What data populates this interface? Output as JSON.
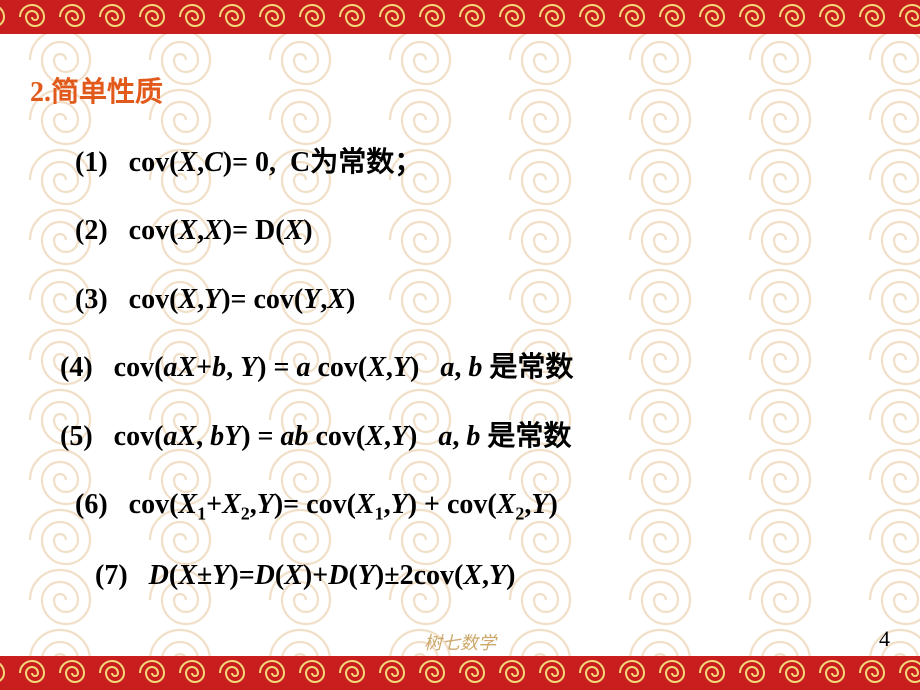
{
  "heading": {
    "num": "2.",
    "text": "简单性质"
  },
  "properties": [
    {
      "html": "(1)&nbsp;&nbsp;&nbsp;cov(<span class='it'>X</span>,<span class='it'>C</span>)= 0,&nbsp;&nbsp;C为常数；",
      "indent": 40
    },
    {
      "html": "(2)&nbsp;&nbsp;&nbsp;cov(<span class='it'>X</span>,<span class='it'>X</span>)= D(<span class='it'>X</span>)",
      "indent": 40
    },
    {
      "html": "(3)&nbsp;&nbsp;&nbsp;cov(<span class='it'>X</span>,<span class='it'>Y</span>)= cov(<span class='it'>Y</span>,<span class='it'>X</span>)",
      "indent": 40
    },
    {
      "html": "(4)&nbsp;&nbsp;&nbsp;cov(<span class='it'>aX</span>+<span class='it'>b</span>, <span class='it'>Y</span>) = <span class='it'>a</span> cov(<span class='it'>X</span>,<span class='it'>Y</span>)&nbsp;&nbsp;&nbsp;<span class='it'>a</span>, <span class='it'>b</span> 是常数",
      "indent": 25
    },
    {
      "html": "(5)&nbsp;&nbsp;&nbsp;cov(<span class='it'>aX</span>, <span class='it'>bY</span>) = <span class='it'>ab</span> cov(<span class='it'>X</span>,<span class='it'>Y</span>)&nbsp;&nbsp;&nbsp;<span class='it'>a</span>, <span class='it'>b</span> 是常数",
      "indent": 25
    },
    {
      "html": "(6)&nbsp;&nbsp;&nbsp;cov(<span class='it'>X</span><span class='sub'>1</span>+<span class='it'>X</span><span class='sub'>2</span>,<span class='it'>Y</span>)= cov(<span class='it'>X</span><span class='sub'>1</span>,<span class='it'>Y</span>) + cov(<span class='it'>X</span><span class='sub'>2</span>,<span class='it'>Y</span>)",
      "indent": 40
    },
    {
      "html": "(7)&nbsp;&nbsp;&nbsp;<span class='it'>D</span>(<span class='it'>X</span>±<span class='it'>Y</span>)=<span class='it'>D</span>(<span class='it'>X</span>)+<span class='it'>D</span>(<span class='it'>Y</span>)±2cov(<span class='it'>X</span>,<span class='it'>Y</span>)",
      "indent": 60
    }
  ],
  "footer_text": "树七数学",
  "page_number": "4",
  "colors": {
    "heading": "#e25a1b",
    "text": "#000000",
    "border_red": "#c81e1e",
    "border_gold": "#e8c060",
    "spiral": "#f0d8c0",
    "background": "#ffffff"
  }
}
